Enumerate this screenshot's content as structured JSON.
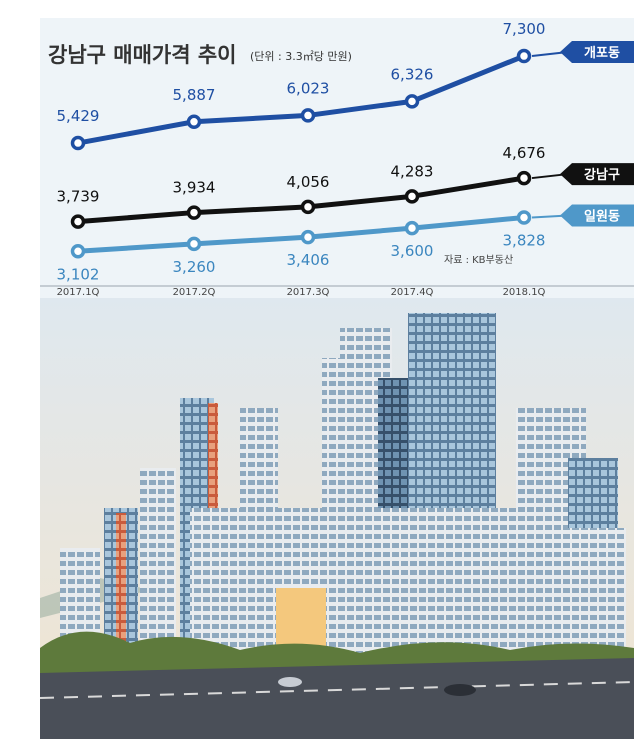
{
  "chart_data": {
    "type": "line",
    "title": "강남구 매매가격 추이",
    "subtitle": "(단위 : 3.3㎡당 만원)",
    "source": "자료 : KB부동산",
    "categories": [
      "2017.1Q",
      "2017.2Q",
      "2017.3Q",
      "2017.4Q",
      "2018.1Q"
    ],
    "value_labels": {
      "s0": [
        "5,429",
        "5,887",
        "6,023",
        "6,326",
        "7,300"
      ],
      "s1": [
        "3,739",
        "3,934",
        "4,056",
        "4,283",
        "4,676"
      ],
      "s2": [
        "3,102",
        "3,260",
        "3,406",
        "3,600",
        "3,828"
      ]
    },
    "series": [
      {
        "name": "개포동",
        "values": [
          5429,
          5887,
          6023,
          6326,
          7300
        ],
        "color": "#1f4fa3"
      },
      {
        "name": "강남구",
        "values": [
          3739,
          3934,
          4056,
          4283,
          4676
        ],
        "color": "#111111"
      },
      {
        "name": "일원동",
        "values": [
          3102,
          3260,
          3406,
          3600,
          3828
        ],
        "color": "#4f98c9"
      }
    ],
    "label_colors": [
      "#1f4fa3",
      "#111111",
      "#3b86bf"
    ],
    "grid": false
  },
  "colors": {
    "panel_bg": "#eef4f8",
    "sky_top": "#dfe8ef",
    "sky_bottom": "#f1e4cf",
    "road": "#4a4f58",
    "greenery": "#5e7a3c"
  }
}
